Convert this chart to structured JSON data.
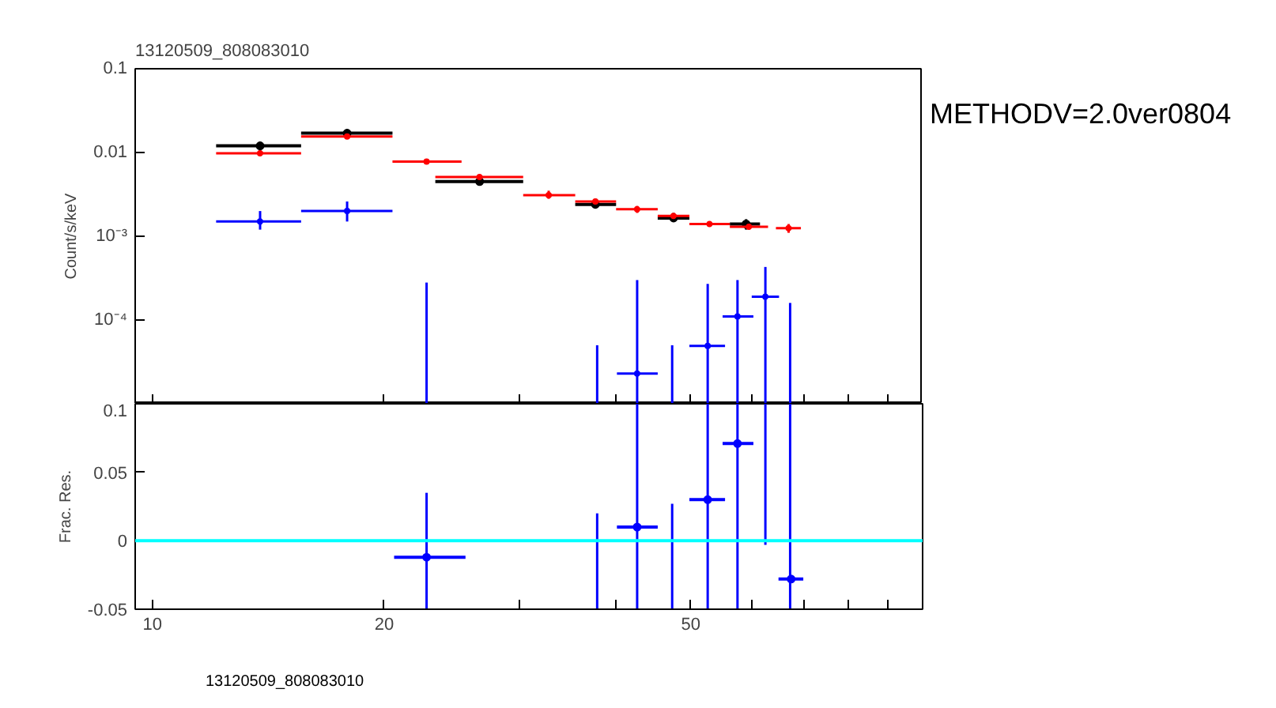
{
  "chart_data": [
    {
      "type": "scatter",
      "title": "13120509_808083010",
      "ylabel": "Count/s/keV",
      "log": "xy",
      "tick_labels": "y",
      "xlim": [
        9.5,
        100
      ],
      "xticks": [
        {
          "value": 10,
          "label": null
        },
        {
          "value": 20,
          "label": null
        },
        {
          "value": 30,
          "label": null
        },
        {
          "value": 40,
          "label": null
        },
        {
          "value": 50,
          "label": null
        },
        {
          "value": 60,
          "label": null
        },
        {
          "value": 70,
          "label": null
        },
        {
          "value": 80,
          "label": null
        },
        {
          "value": 90,
          "label": null
        }
      ],
      "ylim": [
        1e-05,
        0.1
      ],
      "yticks": [
        0.1,
        0.01,
        {
          "value": 0.001,
          "label": "10⁻³"
        },
        {
          "value": 0.0001,
          "label": "10⁻⁴"
        }
      ],
      "annotations": [
        "METHODV=2.0ver0804"
      ],
      "series": [
        {
          "color": "#000000",
          "marker": "circle",
          "x": [
            13.8,
            17.9,
            26.6,
            37.6,
            47.5,
            59
          ],
          "values": [
            0.012,
            0.017,
            0.0045,
            0.0024,
            0.00165,
            0.0014
          ],
          "xerrors": [
            [
              12.1,
              15.6
            ],
            [
              15.6,
              20.5
            ],
            [
              23.3,
              30.3
            ],
            [
              35.4,
              40.0
            ],
            [
              45.3,
              49.8
            ],
            [
              56.2,
              61.5
            ]
          ],
          "errors": [
            [
              0.0105,
              0.0135
            ],
            [
              0.0155,
              0.019
            ],
            [
              0.0041,
              0.005
            ],
            [
              0.0022,
              0.0028
            ],
            [
              0.0015,
              0.0019
            ],
            [
              0.0012,
              0.0016
            ]
          ]
        },
        {
          "color": "#ff0000",
          "marker": "circle",
          "x": [
            13.8,
            17.9,
            22.7,
            26.6,
            32.7,
            37.6,
            42.6,
            47.5,
            52.9,
            59.5,
            67
          ],
          "values": [
            0.0098,
            0.0155,
            0.0078,
            0.0051,
            0.0031,
            0.0026,
            0.0021,
            0.00175,
            0.0014,
            0.0013,
            0.00125
          ],
          "xerrors": [
            [
              12.1,
              15.6
            ],
            [
              15.6,
              20.5
            ],
            [
              20.5,
              25.2
            ],
            [
              23.3,
              30.3
            ],
            [
              30.3,
              35.4
            ],
            [
              35.4,
              40.0
            ],
            [
              40.0,
              45.3
            ],
            [
              45.3,
              49.8
            ],
            [
              49.8,
              56.2
            ],
            [
              56.2,
              63
            ],
            [
              64.5,
              69.5
            ]
          ],
          "errors": [
            null,
            null,
            null,
            null,
            [
              0.0028,
              0.0035
            ],
            null,
            [
              0.0019,
              0.0023
            ],
            null,
            null,
            null,
            [
              0.0011,
              0.0014
            ]
          ]
        },
        {
          "color": "#0000ff",
          "marker": "circle",
          "x": [
            13.8,
            17.9,
            42.6,
            52.6,
            57.5,
            62.5
          ],
          "values": [
            0.0015,
            0.002,
            2.3e-05,
            4.9e-05,
            0.00011,
            0.00019
          ],
          "xerrors": [
            [
              12.1,
              15.6
            ],
            [
              15.6,
              20.5
            ],
            [
              40.1,
              45.3
            ],
            [
              49.8,
              55.4
            ],
            [
              55.0,
              60.3
            ],
            [
              60.0,
              65.1
            ]
          ],
          "errors": [
            [
              0.0012,
              0.002
            ],
            [
              0.0015,
              0.0026
            ],
            [
              1e-05,
              0.0003
            ],
            [
              1e-05,
              0.00027
            ],
            [
              1e-05,
              0.0003
            ],
            [
              1e-05,
              0.00043
            ]
          ]
        },
        {
          "type": "line",
          "color": "#0000ff",
          "x": [
            22.7,
            22.7
          ],
          "values": [
            1e-05,
            0.00028
          ]
        },
        {
          "type": "line",
          "color": "#0000ff",
          "x": [
            37.8,
            37.8
          ],
          "values": [
            1e-05,
            5e-05
          ]
        },
        {
          "type": "line",
          "color": "#0000ff",
          "x": [
            47.3,
            47.3
          ],
          "values": [
            1e-05,
            5e-05
          ]
        },
        {
          "type": "line",
          "color": "#0000ff",
          "x": [
            67.3,
            67.3
          ],
          "values": [
            1e-05,
            0.00016
          ]
        }
      ]
    },
    {
      "type": "scatter",
      "ylabel": "Frac. Res.",
      "log": "x",
      "xlim": [
        9.5,
        100
      ],
      "xticks": [
        10,
        20,
        {
          "value": 30,
          "label": null
        },
        {
          "value": 40,
          "label": null
        },
        50,
        {
          "value": 60,
          "label": null
        },
        {
          "value": 70,
          "label": null
        },
        {
          "value": 80,
          "label": null
        },
        {
          "value": 90,
          "label": null
        }
      ],
      "ylim": [
        -0.05,
        0.1
      ],
      "yticks": [
        -0.05,
        0,
        0.05,
        0.1
      ],
      "annotations": [
        "13120509_808083010"
      ],
      "ref_lines": [
        {
          "axis": "y",
          "value": 0,
          "color": "#00ffff"
        }
      ],
      "series": [
        {
          "color": "#0000ff",
          "marker": "circle",
          "x": [
            22.7,
            42.6,
            52.6,
            57.5,
            67.5
          ],
          "values": [
            -0.012,
            0.01,
            0.03,
            0.071,
            -0.028
          ],
          "xerrors": [
            [
              20.6,
              25.5
            ],
            [
              40.1,
              45.3
            ],
            [
              49.8,
              55.4
            ],
            [
              55.0,
              60.3
            ],
            [
              65,
              70
            ]
          ],
          "errors": [
            [
              -0.05,
              0.035
            ],
            [
              -0.05,
              0.1
            ],
            [
              -0.05,
              0.1
            ],
            [
              -0.05,
              0.1
            ],
            null
          ]
        },
        {
          "type": "line",
          "color": "#0000ff",
          "x": [
            37.8,
            37.8
          ],
          "values": [
            -0.05,
            0.02
          ]
        },
        {
          "type": "line",
          "color": "#0000ff",
          "x": [
            47.3,
            47.3
          ],
          "values": [
            -0.05,
            0.027
          ]
        },
        {
          "type": "line",
          "color": "#0000ff",
          "x": [
            62.5,
            62.5
          ],
          "values": [
            -0.003,
            0.1
          ]
        },
        {
          "type": "line",
          "color": "#0000ff",
          "x": [
            67.3,
            67.3
          ],
          "values": [
            -0.05,
            0.1
          ]
        }
      ]
    }
  ]
}
